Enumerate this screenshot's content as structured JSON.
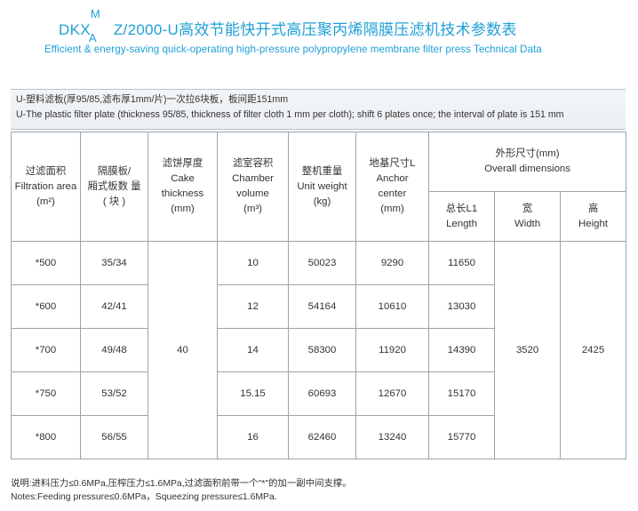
{
  "title": {
    "prefix": "DKX",
    "sup": "M",
    "sub": "A",
    "model_rest": "Z/2000-U",
    "cn": "高效节能快开式高压聚丙烯隔膜压滤机技术参数表",
    "en": "Efficient & energy-saving quick-operating high-pressure polypropylene membrane filter press Technical Data"
  },
  "plate_note": {
    "cn": "U-塑料滤板(厚95/85,滤布厚1mm/片)一次拉6块板，板间距151mm",
    "en": "U-The plastic filter plate (thickness 95/85, thickness of filter cloth 1 mm per cloth); shift 6 plates once; the interval of plate is 151 mm"
  },
  "headers": {
    "area": {
      "cn": "过滤面积",
      "en": "Filtration area",
      "unit": "(m²)"
    },
    "plates": {
      "cn": "隔膜板/",
      "cn2": "厢式板数 量",
      "unit": "( 块 )"
    },
    "cake": {
      "cn": "滤饼厚度",
      "en1": "Cake",
      "en2": "thickness",
      "unit": "(mm)"
    },
    "chamber": {
      "cn": "滤室容积",
      "en1": "Chamber",
      "en2": "volume",
      "unit": "(m³)"
    },
    "weight": {
      "cn": "整机重量",
      "en": "Unit weight",
      "unit": "(kg)"
    },
    "anchor": {
      "cn": "地基尺寸L",
      "en1": "Anchor",
      "en2": "center",
      "unit": "(mm)"
    },
    "overall": {
      "cn": "外形尺寸(mm)",
      "en": "Overall  dimensions"
    },
    "length": {
      "cn": "总长L1",
      "en": "Length"
    },
    "width": {
      "cn": "宽",
      "en": "Width"
    },
    "height": {
      "cn": "高",
      "en": "Height"
    }
  },
  "rows": [
    {
      "area": "*500",
      "plates": "35/34",
      "chamber": "10",
      "weight": "50023",
      "anchor": "9290",
      "length": "11650"
    },
    {
      "area": "*600",
      "plates": "42/41",
      "chamber": "12",
      "weight": "54164",
      "anchor": "10610",
      "length": "13030"
    },
    {
      "area": "*700",
      "plates": "49/48",
      "chamber": "14",
      "weight": "58300",
      "anchor": "11920",
      "length": "14390"
    },
    {
      "area": "*750",
      "plates": "53/52",
      "chamber": "15.15",
      "weight": "60693",
      "anchor": "12670",
      "length": "15170"
    },
    {
      "area": "*800",
      "plates": "56/55",
      "chamber": "16",
      "weight": "62460",
      "anchor": "13240",
      "length": "15770"
    }
  ],
  "shared": {
    "cake": "40",
    "width": "3520",
    "height": "2425"
  },
  "footnote": {
    "cn": "说明:进料压力≤0.6MPa,压榨压力≤1.6MPa,过滤面积前带一个\"*\"的加一副中间支撑。",
    "en": "Notes:Feeding pressure≤0.6MPa，Squeezing pressure≤1.6MPa."
  },
  "colors": {
    "accent": "#1f9fd6",
    "border": "#9aa4ad"
  }
}
